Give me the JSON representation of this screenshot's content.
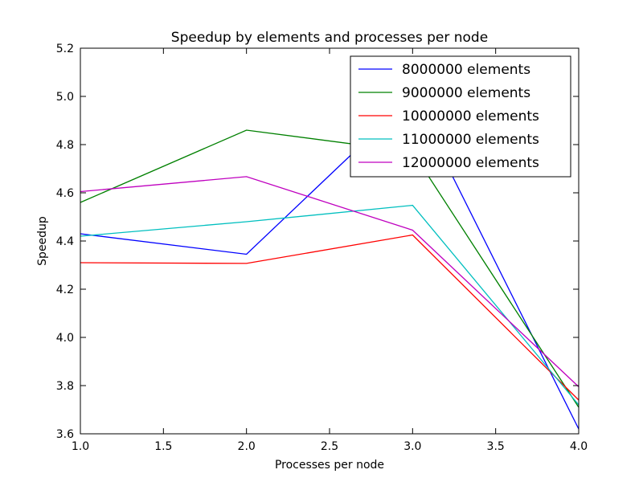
{
  "chart_data": {
    "type": "line",
    "title": "Speedup by elements and processes per node",
    "xlabel": "Processes per node",
    "ylabel": "Speedup",
    "xlim": [
      1.0,
      4.0
    ],
    "ylim": [
      3.6,
      5.2
    ],
    "xticks": [
      "1.0",
      "1.5",
      "2.0",
      "2.5",
      "3.0",
      "3.5",
      "4.0"
    ],
    "yticks": [
      "3.6",
      "3.8",
      "4.0",
      "4.2",
      "4.4",
      "4.6",
      "4.8",
      "5.0",
      "5.2"
    ],
    "grid": false,
    "legend_position": "top-right",
    "x": [
      1,
      2,
      3,
      4
    ],
    "series": [
      {
        "name": "8000000 elements",
        "color": "#0000ff",
        "values": [
          4.43,
          4.345,
          5.0,
          3.62
        ]
      },
      {
        "name": "9000000 elements",
        "color": "#008000",
        "values": [
          4.56,
          4.86,
          4.77,
          3.71
        ]
      },
      {
        "name": "10000000 elements",
        "color": "#ff0000",
        "values": [
          4.31,
          4.307,
          4.425,
          3.74
        ]
      },
      {
        "name": "11000000 elements",
        "color": "#00bfbf",
        "values": [
          4.42,
          4.48,
          4.548,
          3.72
        ]
      },
      {
        "name": "12000000 elements",
        "color": "#bf00bf",
        "values": [
          4.605,
          4.667,
          4.445,
          3.795
        ]
      }
    ]
  }
}
